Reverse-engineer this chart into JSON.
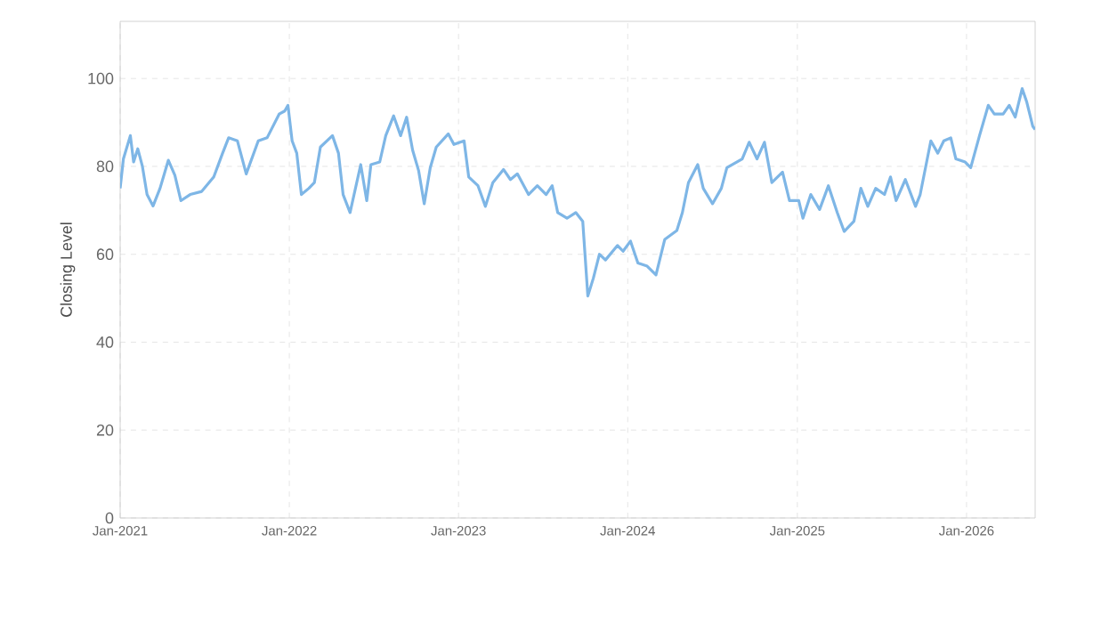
{
  "chart_data": {
    "type": "line",
    "ylabel": "Closing Level",
    "xlim": [
      "2021-01-01",
      "2026-05-29"
    ],
    "ylim": [
      0,
      113
    ],
    "xticks": [
      {
        "value": "2021-01-01",
        "label": "Jan-2021"
      },
      {
        "value": "2022-01-01",
        "label": "Jan-2022"
      },
      {
        "value": "2023-01-01",
        "label": "Jan-2023"
      },
      {
        "value": "2024-01-01",
        "label": "Jan-2024"
      },
      {
        "value": "2025-01-01",
        "label": "Jan-2025"
      },
      {
        "value": "2026-01-01",
        "label": "Jan-2026"
      }
    ],
    "yticks": [
      0,
      20,
      40,
      60,
      80,
      100
    ],
    "grid": true,
    "marker": "none",
    "line_style": "solid",
    "x": [
      "2021-01-01",
      "2021-01-08",
      "2021-01-23",
      "2021-01-30",
      "2021-02-08",
      "2021-02-18",
      "2021-02-28",
      "2021-03-13",
      "2021-03-28",
      "2021-04-15",
      "2021-04-29",
      "2021-05-12",
      "2021-06-01",
      "2021-06-26",
      "2021-07-22",
      "2021-08-10",
      "2021-08-23",
      "2021-09-11",
      "2021-09-30",
      "2021-10-26",
      "2021-11-14",
      "2021-12-10",
      "2021-12-22",
      "2021-12-29",
      "2022-01-07",
      "2022-01-17",
      "2022-01-27",
      "2022-02-12",
      "2022-02-24",
      "2022-03-09",
      "2022-04-04",
      "2022-04-17",
      "2022-04-27",
      "2022-05-12",
      "2022-06-04",
      "2022-06-17",
      "2022-06-26",
      "2022-07-15",
      "2022-07-28",
      "2022-08-14",
      "2022-08-29",
      "2022-09-11",
      "2022-09-24",
      "2022-10-07",
      "2022-10-19",
      "2022-11-01",
      "2022-11-14",
      "2022-12-10",
      "2022-12-22",
      "2023-01-13",
      "2023-01-23",
      "2023-02-12",
      "2023-02-28",
      "2023-03-16",
      "2023-04-08",
      "2023-04-23",
      "2023-05-08",
      "2023-06-01",
      "2023-06-20",
      "2023-07-09",
      "2023-07-22",
      "2023-08-03",
      "2023-08-23",
      "2023-09-11",
      "2023-09-26",
      "2023-10-07",
      "2023-10-19",
      "2023-11-01",
      "2023-11-14",
      "2023-12-10",
      "2023-12-22",
      "2024-01-07",
      "2024-01-23",
      "2024-02-12",
      "2024-03-02",
      "2024-03-21",
      "2024-04-16",
      "2024-04-28",
      "2024-05-11",
      "2024-05-31",
      "2024-06-12",
      "2024-07-02",
      "2024-07-21",
      "2024-08-02",
      "2024-09-04",
      "2024-09-19",
      "2024-10-06",
      "2024-10-22",
      "2024-11-07",
      "2024-11-30",
      "2024-12-15",
      "2025-01-04",
      "2025-01-13",
      "2025-01-30",
      "2025-02-18",
      "2025-03-09",
      "2025-03-28",
      "2025-04-12",
      "2025-05-03",
      "2025-05-18",
      "2025-06-02",
      "2025-06-19",
      "2025-07-08",
      "2025-07-21",
      "2025-08-02",
      "2025-08-22",
      "2025-09-13",
      "2025-09-23",
      "2025-10-16",
      "2025-10-31",
      "2025-11-13",
      "2025-11-28",
      "2025-12-09",
      "2025-12-29",
      "2026-01-10",
      "2026-01-29",
      "2026-02-17",
      "2026-03-02",
      "2026-03-21",
      "2026-04-03",
      "2026-04-16",
      "2026-05-01",
      "2026-05-11",
      "2026-05-24",
      "2026-05-29"
    ],
    "series": [
      {
        "color": "#7eb6e6",
        "values": [
          75,
          81.7,
          87,
          81,
          84,
          80,
          73.6,
          71,
          75,
          81.4,
          78,
          72.2,
          73.6,
          74.3,
          77.6,
          83,
          86.5,
          85.8,
          78.3,
          85.8,
          86.5,
          91.9,
          92.6,
          93.9,
          85.8,
          83,
          73.6,
          75,
          76.3,
          84.4,
          87,
          83,
          73.6,
          69.5,
          80.4,
          72.2,
          80.4,
          81,
          87,
          91.5,
          87,
          91.2,
          83.7,
          79,
          71.5,
          79.7,
          84.4,
          87.4,
          85,
          85.8,
          77.6,
          75.6,
          70.9,
          76.3,
          79.3,
          77,
          78.3,
          73.6,
          75.6,
          73.6,
          75.6,
          69.5,
          68.2,
          69.5,
          67.5,
          50.5,
          54.6,
          60,
          58.7,
          62,
          60.7,
          63,
          58,
          57.3,
          55.3,
          63.4,
          65.4,
          69.5,
          76.3,
          80.4,
          75,
          71.5,
          75,
          79.7,
          81.7,
          85.5,
          81.7,
          85.5,
          76.3,
          78.7,
          72.2,
          72.2,
          68.2,
          73.6,
          70.2,
          75.6,
          69.5,
          65.2,
          67.5,
          75,
          70.9,
          75,
          73.6,
          77.6,
          72.2,
          77,
          70.9,
          73.6,
          85.8,
          83,
          85.8,
          86.5,
          81.7,
          81,
          79.7,
          87,
          93.9,
          91.9,
          91.9,
          93.9,
          91.2,
          97.7,
          94.6,
          89.1,
          88.4
        ]
      }
    ]
  }
}
